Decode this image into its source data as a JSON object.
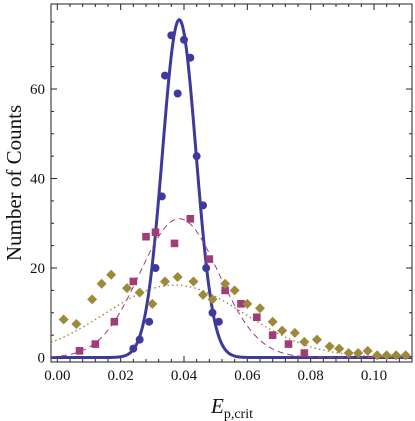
{
  "chart_data": {
    "type": "scatter",
    "xlabel_main": "E",
    "xlabel_sub": "p,crit",
    "ylabel": "Number of Counts",
    "xlim": [
      -0.002,
      0.112
    ],
    "ylim": [
      -1,
      79
    ],
    "xticks": [
      0.0,
      0.02,
      0.04,
      0.06,
      0.08,
      0.1
    ],
    "xtick_labels": [
      "0.00",
      "0.02",
      "0.04",
      "0.06",
      "0.08",
      "0.10"
    ],
    "yticks": [
      0,
      20,
      40,
      60
    ],
    "ytick_labels": [
      "0",
      "20",
      "40",
      "60"
    ],
    "grid": false,
    "series": [
      {
        "marker": "circle",
        "color": "#3d3a9c",
        "x": [
          0.024,
          0.026,
          0.029,
          0.031,
          0.033,
          0.034,
          0.036,
          0.038,
          0.04,
          0.042,
          0.044,
          0.046,
          0.047,
          0.049,
          0.051
        ],
        "y": [
          2,
          4,
          8,
          20,
          36,
          63,
          72,
          59,
          71,
          67,
          45,
          34,
          20,
          10,
          8
        ],
        "fit": {
          "mu": 0.0385,
          "sigma": 0.0053,
          "amp": 75.5,
          "style": "solid"
        }
      },
      {
        "marker": "square",
        "color": "#a03c78",
        "x": [
          0.007,
          0.012,
          0.018,
          0.024,
          0.028,
          0.031,
          0.037,
          0.042,
          0.048,
          0.053,
          0.058,
          0.063,
          0.068,
          0.073,
          0.078
        ],
        "y": [
          1.5,
          3,
          8,
          17,
          27,
          28,
          25.5,
          31,
          22,
          15,
          12,
          9,
          5,
          3,
          1
        ],
        "fit": {
          "mu": 0.0385,
          "sigma": 0.0125,
          "amp": 31,
          "style": "dashed"
        }
      },
      {
        "marker": "diamond",
        "color": "#9c8a3a",
        "x": [
          0.002,
          0.006,
          0.011,
          0.014,
          0.017,
          0.022,
          0.026,
          0.03,
          0.034,
          0.038,
          0.043,
          0.046,
          0.049,
          0.053,
          0.056,
          0.06,
          0.064,
          0.068,
          0.071,
          0.075,
          0.078,
          0.082,
          0.086,
          0.089,
          0.092,
          0.095,
          0.098,
          0.101,
          0.104,
          0.107,
          0.11
        ],
        "y": [
          8.5,
          7.5,
          13,
          16.5,
          18.5,
          15.5,
          14.5,
          12,
          17,
          18,
          17,
          14,
          13,
          16.5,
          15,
          12,
          11,
          8,
          6,
          5.5,
          3.5,
          4,
          2.5,
          2,
          1,
          1,
          1.5,
          0.5,
          0.5,
          0.5,
          0.5
        ],
        "fit": {
          "mu": 0.037,
          "sigma": 0.022,
          "amp": 16.2,
          "style": "dotted"
        }
      }
    ]
  }
}
